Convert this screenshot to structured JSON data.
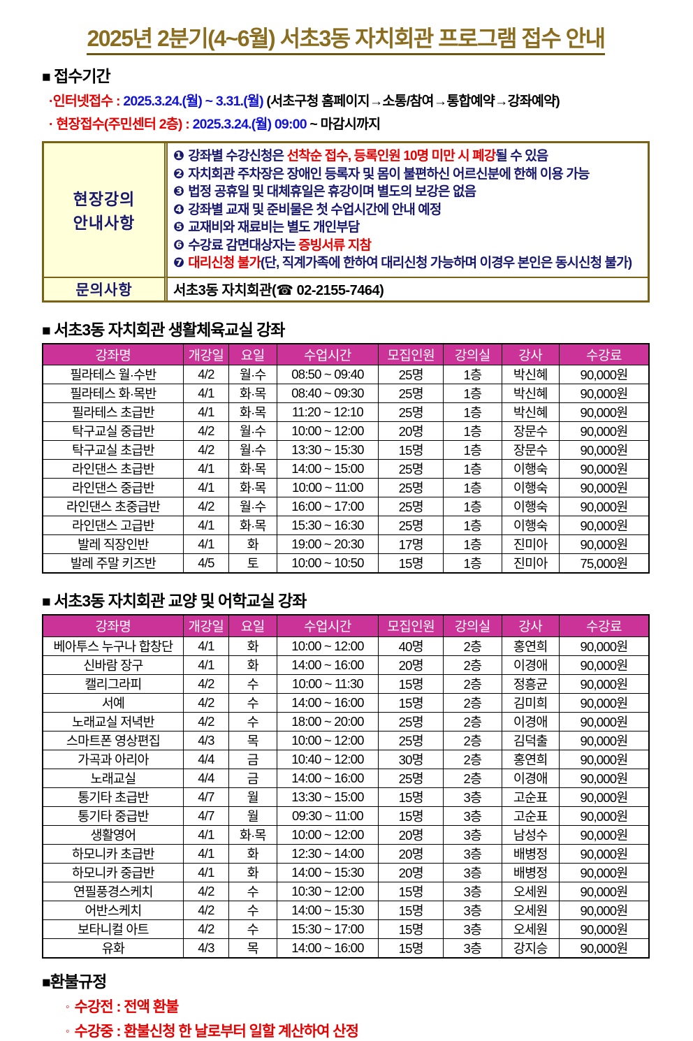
{
  "title": "2025년 2분기(4~6월) 서초3동 자치회관 프로그램 접수 안내",
  "reception": {
    "heading_square": "■",
    "heading": " 접수기간",
    "internet": {
      "bullet": "·",
      "label": "인터넷접수",
      "colon": " : ",
      "dates": "2025.3.24.(월) ~ 3.31.(월)",
      "note": " (서초구청 홈페이지→소통/참여→통합예약→강좌예약)"
    },
    "onsite": {
      "bullet": "· ",
      "label": "현장접수(주민센터 2층)",
      "colon": " : ",
      "dates": "2025.3.24.(월) 09:00",
      "note": " ~ 마감시까지"
    }
  },
  "notice_box": {
    "left_title_line1": "현장강의",
    "left_title_line2": "안내사항",
    "items": [
      {
        "num": "❶",
        "segments": [
          {
            "t": "강좌별 수강신청은 ",
            "c": "navy"
          },
          {
            "t": "선착순 접수, 등록인원 10명 미만 시 폐강",
            "c": "red"
          },
          {
            "t": "될 수 있음",
            "c": "navy"
          }
        ]
      },
      {
        "num": "❷",
        "segments": [
          {
            "t": "자치회관 주차장은 장애인 등록자 및 몸이 불편하신 어르신분에 한해 이용 가능",
            "c": "navy"
          }
        ]
      },
      {
        "num": "❸",
        "segments": [
          {
            "t": "법정 공휴일 및 대체휴일은 휴강이며 별도의 보강은 없음",
            "c": "navy"
          }
        ]
      },
      {
        "num": "❹",
        "segments": [
          {
            "t": "강좌별 교재 및 준비물은 첫 수업시간에 안내 예정",
            "c": "navy"
          }
        ]
      },
      {
        "num": "❺",
        "segments": [
          {
            "t": "교재비와 재료비는 별도 개인부담",
            "c": "navy"
          }
        ]
      },
      {
        "num": "❻",
        "segments": [
          {
            "t": "수강료 감면대상자는 ",
            "c": "navy"
          },
          {
            "t": "증빙서류 지참",
            "c": "red"
          }
        ]
      },
      {
        "num": "❼",
        "segments": [
          {
            "t": "대리신청 불가",
            "c": "red"
          },
          {
            "t": "(단, 직계가족에 한하여 대리신청 가능하며 이경우 본인은 동시신청 불가)",
            "c": "navy"
          }
        ]
      }
    ],
    "inquiry_label": "문의사항",
    "inquiry_value": "서초3동 자치회관(☎ 02-2155-7464)"
  },
  "table1": {
    "heading_square": "■",
    "heading": " 서초3동 자치회관 생활체육교실 강좌",
    "headers": [
      "강좌명",
      "개강일",
      "요일",
      "수업시간",
      "모집인원",
      "강의실",
      "강사",
      "수강료"
    ],
    "rows": [
      [
        "필라테스 월·수반",
        "4/2",
        "월·수",
        "08:50 ~ 09:40",
        "25명",
        "1층",
        "박신혜",
        "90,000원"
      ],
      [
        "필라테스 화·목반",
        "4/1",
        "화·목",
        "08:40 ~ 09:30",
        "25명",
        "1층",
        "박신혜",
        "90,000원"
      ],
      [
        "필라테스 초급반",
        "4/1",
        "화·목",
        "11:20 ~ 12:10",
        "25명",
        "1층",
        "박신혜",
        "90,000원"
      ],
      [
        "탁구교실 중급반",
        "4/2",
        "월·수",
        "10:00 ~ 12:00",
        "20명",
        "1층",
        "장문수",
        "90,000원"
      ],
      [
        "탁구교실 초급반",
        "4/2",
        "월·수",
        "13:30 ~ 15:30",
        "15명",
        "1층",
        "장문수",
        "90,000원"
      ],
      [
        "라인댄스 초급반",
        "4/1",
        "화·목",
        "14:00 ~ 15:00",
        "25명",
        "1층",
        "이행숙",
        "90,000원"
      ],
      [
        "라인댄스 중급반",
        "4/1",
        "화·목",
        "10:00 ~ 11:00",
        "25명",
        "1층",
        "이행숙",
        "90,000원"
      ],
      [
        "라인댄스 초중급반",
        "4/2",
        "월·수",
        "16:00 ~ 17:00",
        "25명",
        "1층",
        "이행숙",
        "90,000원"
      ],
      [
        "라인댄스 고급반",
        "4/1",
        "화·목",
        "15:30 ~ 16:30",
        "25명",
        "1층",
        "이행숙",
        "90,000원"
      ],
      [
        "발레 직장인반",
        "4/1",
        "화",
        "19:00 ~ 20:30",
        "17명",
        "1층",
        "진미아",
        "90,000원"
      ],
      [
        "발레 주말 키즈반",
        "4/5",
        "토",
        "10:00 ~ 10:50",
        "15명",
        "1층",
        "진미아",
        "75,000원"
      ]
    ]
  },
  "table2": {
    "heading_square": "■",
    "heading": " 서초3동 자치회관 교양 및 어학교실 강좌",
    "headers": [
      "강좌명",
      "개강일",
      "요일",
      "수업시간",
      "모집인원",
      "강의실",
      "강사",
      "수강료"
    ],
    "rows": [
      [
        "베아투스 누구나 합창단",
        "4/1",
        "화",
        "10:00 ~ 12:00",
        "40명",
        "2층",
        "홍연희",
        "90,000원"
      ],
      [
        "신바람 장구",
        "4/1",
        "화",
        "14:00 ~ 16:00",
        "20명",
        "2층",
        "이경애",
        "90,000원"
      ],
      [
        "캘리그라피",
        "4/2",
        "수",
        "10:00 ~ 11:30",
        "15명",
        "2층",
        "정흥균",
        "90,000원"
      ],
      [
        "서예",
        "4/2",
        "수",
        "14:00 ~ 16:00",
        "15명",
        "2층",
        "김미희",
        "90,000원"
      ],
      [
        "노래교실 저녁반",
        "4/2",
        "수",
        "18:00 ~ 20:00",
        "25명",
        "2층",
        "이경애",
        "90,000원"
      ],
      [
        "스마트폰 영상편집",
        "4/3",
        "목",
        "10:00 ~ 12:00",
        "25명",
        "2층",
        "김덕출",
        "90,000원"
      ],
      [
        "가곡과 아리아",
        "4/4",
        "금",
        "10:40 ~ 12:00",
        "30명",
        "2층",
        "홍연희",
        "90,000원"
      ],
      [
        "노래교실",
        "4/4",
        "금",
        "14:00 ~ 16:00",
        "25명",
        "2층",
        "이경애",
        "90,000원"
      ],
      [
        "통기타 초급반",
        "4/7",
        "월",
        "13:30 ~ 15:00",
        "15명",
        "3층",
        "고순표",
        "90,000원"
      ],
      [
        "통기타 중급반",
        "4/7",
        "월",
        "09:30 ~ 11:00",
        "15명",
        "3층",
        "고순표",
        "90,000원"
      ],
      [
        "생활영어",
        "4/1",
        "화·목",
        "10:00 ~ 12:00",
        "20명",
        "3층",
        "남성수",
        "90,000원"
      ],
      [
        "하모니카 초급반",
        "4/1",
        "화",
        "12:30 ~ 14:00",
        "20명",
        "3층",
        "배병정",
        "90,000원"
      ],
      [
        "하모니카 중급반",
        "4/1",
        "화",
        "14:00 ~ 15:30",
        "20명",
        "3층",
        "배병정",
        "90,000원"
      ],
      [
        "연필풍경스케치",
        "4/2",
        "수",
        "10:30 ~ 12:00",
        "15명",
        "3층",
        "오세원",
        "90,000원"
      ],
      [
        "어반스케치",
        "4/2",
        "수",
        "14:00 ~ 15:30",
        "15명",
        "3층",
        "오세원",
        "90,000원"
      ],
      [
        "보타니컬 아트",
        "4/2",
        "수",
        "15:30 ~ 17:00",
        "15명",
        "3층",
        "오세원",
        "90,000원"
      ],
      [
        "유화",
        "4/3",
        "목",
        "14:00 ~ 16:00",
        "15명",
        "3층",
        "강지승",
        "90,000원"
      ]
    ]
  },
  "refund": {
    "heading_square": "■",
    "heading": "환불규정",
    "items": [
      {
        "bullet": "◦",
        "text": "수강전 : 전액 환불"
      },
      {
        "bullet": "◦",
        "text": "수강중 : 환불신청 한 날로부터 일할 계산하여 산정"
      }
    ]
  },
  "colors": {
    "title_gold": "#8a6d1f",
    "table_header_magenta": "#cc3399",
    "notice_navy": "#17176e",
    "emphasis_red": "#e60000",
    "date_blue": "#1212d4",
    "box_border_brown": "#7b6113",
    "box_bg_yellow": "#ffffd9"
  }
}
